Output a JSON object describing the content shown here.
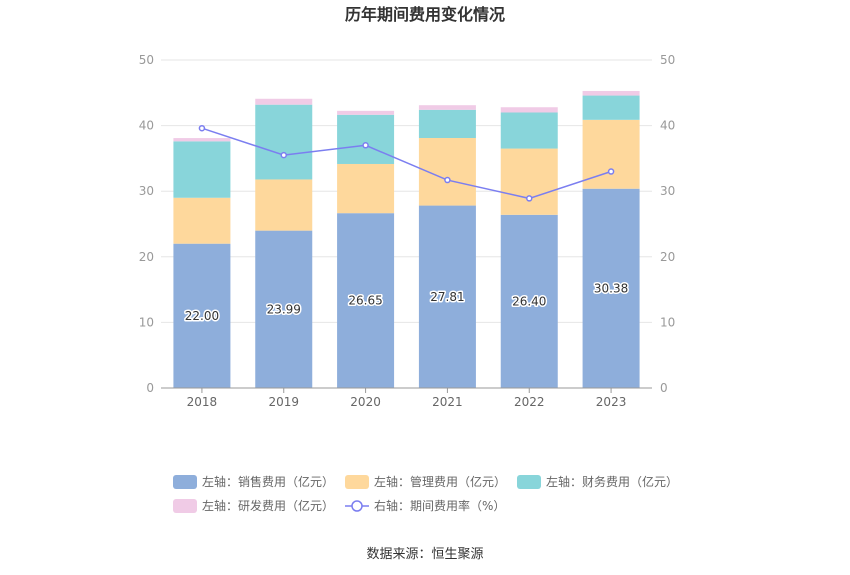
{
  "chart_data": {
    "type": "bar",
    "title": "历年期间费用变化情况",
    "categories": [
      "2018",
      "2019",
      "2020",
      "2021",
      "2022",
      "2023"
    ],
    "y_left": {
      "min": 0,
      "max": 50,
      "ticks": [
        0,
        10,
        20,
        30,
        40,
        50
      ]
    },
    "y_right": {
      "min": 0,
      "max": 50,
      "ticks": [
        0,
        10,
        20,
        30,
        40,
        50
      ]
    },
    "stacked": true,
    "grid": true,
    "legend_placement": "bottom",
    "series": [
      {
        "name": "左轴：销售费用（亿元）",
        "axis": "left",
        "type": "bar",
        "color": "#8eaedb",
        "values": [
          22.0,
          23.99,
          26.65,
          27.81,
          26.4,
          30.38
        ],
        "show_labels": true
      },
      {
        "name": "左轴：管理费用（亿元）",
        "axis": "left",
        "type": "bar",
        "color": "#fed89c",
        "values": [
          7.0,
          7.8,
          7.5,
          10.3,
          10.1,
          10.5
        ]
      },
      {
        "name": "左轴：财务费用（亿元）",
        "axis": "left",
        "type": "bar",
        "color": "#88d5da",
        "values": [
          8.6,
          11.4,
          7.5,
          4.3,
          5.5,
          3.7
        ]
      },
      {
        "name": "左轴：研发费用（亿元）",
        "axis": "left",
        "type": "bar",
        "color": "#f0cbe6",
        "values": [
          0.5,
          0.9,
          0.6,
          0.7,
          0.8,
          0.7
        ]
      },
      {
        "name": "右轴：期间费用率（%）",
        "axis": "right",
        "type": "line",
        "color": "#7b7ef0",
        "values": [
          39.6,
          35.5,
          37.0,
          31.7,
          28.9,
          33.0
        ]
      }
    ]
  },
  "source": "数据来源：恒生聚源"
}
